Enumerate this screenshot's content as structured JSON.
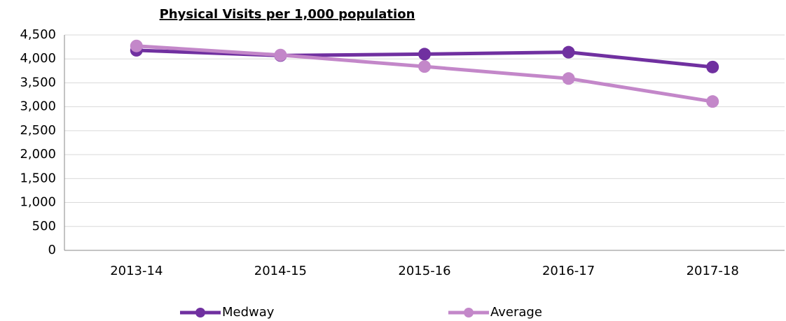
{
  "chart_data": {
    "type": "line",
    "title": "Physical Visits per 1,000 population",
    "categories": [
      "2013-14",
      "2014-15",
      "2015-16",
      "2016-17",
      "2017-18"
    ],
    "series": [
      {
        "name": "Medway",
        "color": "#7030a0",
        "values": [
          4180,
          4070,
          4100,
          4140,
          3830
        ]
      },
      {
        "name": "Average",
        "color": "#c387c9",
        "values": [
          4270,
          4080,
          3840,
          3590,
          3110
        ]
      }
    ],
    "ylim": [
      0,
      4500
    ],
    "yticks": [
      0,
      500,
      {
        "value": 1000,
        "label": "1,000"
      },
      {
        "value": 1500,
        "label": "1,500"
      },
      {
        "value": 2000,
        "label": "2,000"
      },
      {
        "value": 2500,
        "label": "2,500"
      },
      {
        "value": 3000,
        "label": "3,000"
      },
      {
        "value": 3500,
        "label": "3,500"
      },
      {
        "value": 4000,
        "label": "4,000"
      },
      {
        "value": 4500,
        "label": "4,500"
      }
    ],
    "grid": true,
    "legend": "bottom"
  }
}
